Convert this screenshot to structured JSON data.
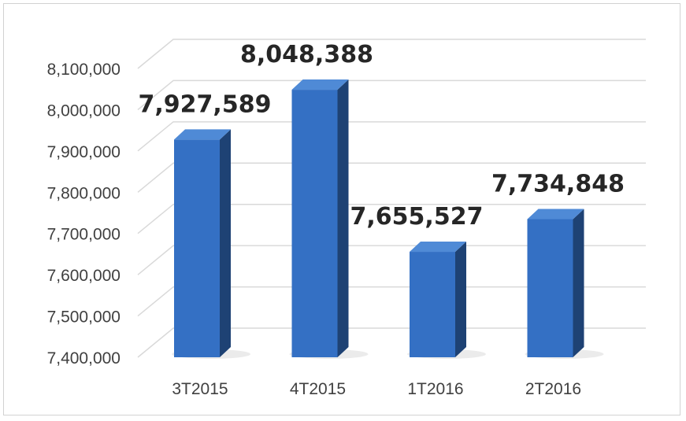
{
  "chart_data": {
    "type": "bar",
    "style": "3d-column",
    "categories": [
      "3T2015",
      "4T2015",
      "1T2016",
      "2T2016"
    ],
    "values": [
      7927589,
      8048388,
      7655527,
      7734848
    ],
    "data_labels": [
      "7,927,589",
      "8,048,388",
      "7,655,527",
      "7,734,848"
    ],
    "title": "",
    "xlabel": "",
    "ylabel": "",
    "ylim": [
      7400000,
      8100000
    ],
    "yticks": [
      7400000,
      7500000,
      7600000,
      7700000,
      7800000,
      7900000,
      8000000,
      8100000
    ],
    "ytick_labels": [
      "7,400,000",
      "7,500,000",
      "7,600,000",
      "7,700,000",
      "7,800,000",
      "7,900,000",
      "8,000,000",
      "8,100,000"
    ],
    "grid": true,
    "legend": "none",
    "colors": {
      "bar_front": "#3470c4",
      "bar_side": "#1e4274",
      "bar_top": "#4f8ad6",
      "grid": "#d9d9d9",
      "text": "#404040",
      "data_label": "#262626"
    }
  }
}
